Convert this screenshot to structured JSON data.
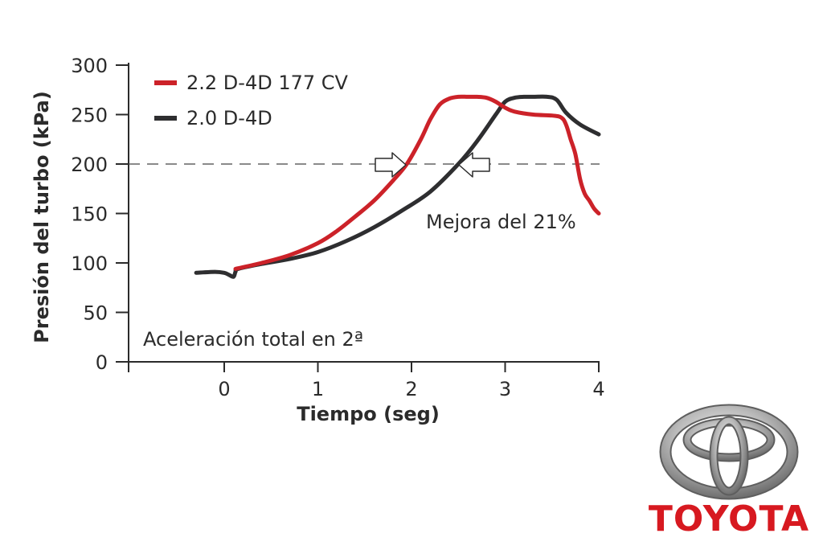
{
  "chart_data": {
    "type": "line",
    "title": "",
    "xlabel": "Tiempo (seg)",
    "ylabel": "Presión del turbo (kPa)",
    "xlim": [
      -1,
      4
    ],
    "ylim": [
      0,
      300
    ],
    "x_ticks": [
      "0",
      "1",
      "2",
      "3",
      "4"
    ],
    "y_ticks": [
      "0",
      "50",
      "100",
      "150",
      "200",
      "250",
      "300"
    ],
    "grid": false,
    "legend_position": "top-left",
    "reference_line": {
      "y": 200,
      "style": "dashed"
    },
    "series": [
      {
        "name": "2.2 D-4D 177 CV",
        "color": "#cc2229",
        "x": [
          0.12,
          0.4,
          0.7,
          1.0,
          1.2,
          1.4,
          1.6,
          1.8,
          1.95,
          2.1,
          2.2,
          2.3,
          2.4,
          2.5,
          2.6,
          2.7,
          2.8,
          2.9,
          3.0,
          3.1,
          3.3,
          3.5,
          3.6,
          3.65,
          3.7,
          3.75,
          3.8,
          3.85,
          3.9,
          3.95,
          4.0
        ],
        "values": [
          94,
          100,
          108,
          120,
          132,
          147,
          163,
          183,
          200,
          225,
          245,
          260,
          266,
          268,
          268,
          268,
          267,
          263,
          257,
          253,
          250,
          249,
          247,
          240,
          225,
          210,
          185,
          170,
          163,
          155,
          150
        ]
      },
      {
        "name": "2.0 D-4D",
        "color": "#2e2e30",
        "x": [
          -0.3,
          -0.1,
          0.0,
          0.05,
          0.1,
          0.12,
          0.15,
          0.4,
          0.7,
          1.0,
          1.3,
          1.6,
          1.9,
          2.2,
          2.5,
          2.7,
          2.9,
          3.0,
          3.1,
          3.2,
          3.3,
          3.45,
          3.55,
          3.65,
          3.8,
          4.0
        ],
        "values": [
          90,
          91,
          90,
          88,
          86,
          91,
          94,
          99,
          104,
          111,
          122,
          136,
          153,
          172,
          200,
          223,
          250,
          263,
          267,
          268,
          268,
          268,
          265,
          252,
          240,
          230
        ]
      }
    ],
    "annotations": [
      {
        "text": "Mejora del 21%"
      },
      {
        "text": "Aceleración total en 2ª"
      }
    ]
  },
  "brand": {
    "name": "TOYOTA",
    "color": "#d71920",
    "logo_icon": "toyota-emblem-icon"
  }
}
